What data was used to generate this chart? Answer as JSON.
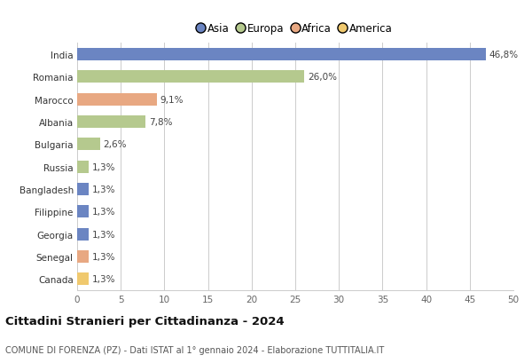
{
  "countries": [
    "India",
    "Romania",
    "Marocco",
    "Albania",
    "Bulgaria",
    "Russia",
    "Bangladesh",
    "Filippine",
    "Georgia",
    "Senegal",
    "Canada"
  ],
  "values": [
    46.8,
    26.0,
    9.1,
    7.8,
    2.6,
    1.3,
    1.3,
    1.3,
    1.3,
    1.3,
    1.3
  ],
  "labels": [
    "46,8%",
    "26,0%",
    "9,1%",
    "7,8%",
    "2,6%",
    "1,3%",
    "1,3%",
    "1,3%",
    "1,3%",
    "1,3%",
    "1,3%"
  ],
  "colors": [
    "#6b85c2",
    "#b5c98e",
    "#e8a882",
    "#b5c98e",
    "#b5c98e",
    "#b5c98e",
    "#6b85c2",
    "#6b85c2",
    "#6b85c2",
    "#e8a882",
    "#f0c96e"
  ],
  "legend_labels": [
    "Asia",
    "Europa",
    "Africa",
    "America"
  ],
  "legend_colors": [
    "#6b85c2",
    "#b5c98e",
    "#e8a882",
    "#f0c96e"
  ],
  "title": "Cittadini Stranieri per Cittadinanza - 2024",
  "subtitle": "COMUNE DI FORENZA (PZ) - Dati ISTAT al 1° gennaio 2024 - Elaborazione TUTTITALIA.IT",
  "xlim": [
    0,
    50
  ],
  "xticks": [
    0,
    5,
    10,
    15,
    20,
    25,
    30,
    35,
    40,
    45,
    50
  ],
  "background_color": "#ffffff",
  "grid_color": "#cccccc",
  "bar_height": 0.55,
  "label_fontsize": 7.5,
  "ytick_fontsize": 7.5,
  "xtick_fontsize": 7.5,
  "legend_fontsize": 8.5,
  "title_fontsize": 9.5,
  "subtitle_fontsize": 7.0
}
